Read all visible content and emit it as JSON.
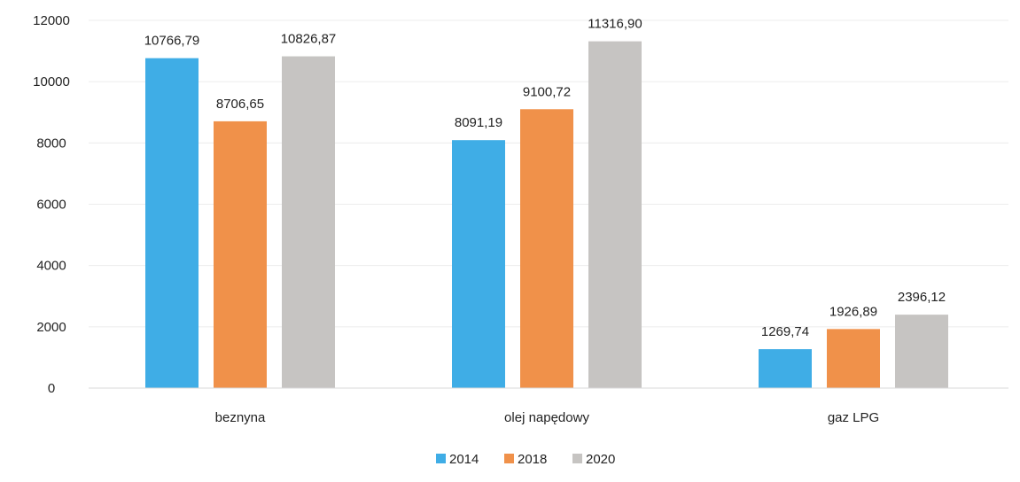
{
  "chart_data": {
    "type": "bar",
    "categories": [
      "beznyna",
      "olej napędowy",
      "gaz LPG"
    ],
    "series": [
      {
        "name": "2014",
        "color": "#3FADE6",
        "values": [
          10766.79,
          8091.19,
          1269.74
        ],
        "labels": [
          "10766,79",
          "8091,19",
          "1269,74"
        ]
      },
      {
        "name": "2018",
        "color": "#F0914A",
        "values": [
          8706.65,
          9100.72,
          1926.89
        ],
        "labels": [
          "8706,65",
          "9100,72",
          "1926,89"
        ]
      },
      {
        "name": "2020",
        "color": "#C6C4C2",
        "values": [
          10826.87,
          11316.9,
          2396.12
        ],
        "labels": [
          "10826,87",
          "11316,90",
          "2396,12"
        ]
      }
    ],
    "ylim": [
      0,
      12000
    ],
    "yticks": [
      0,
      2000,
      4000,
      6000,
      8000,
      10000,
      12000
    ],
    "grid": true,
    "legend": "bottom"
  }
}
